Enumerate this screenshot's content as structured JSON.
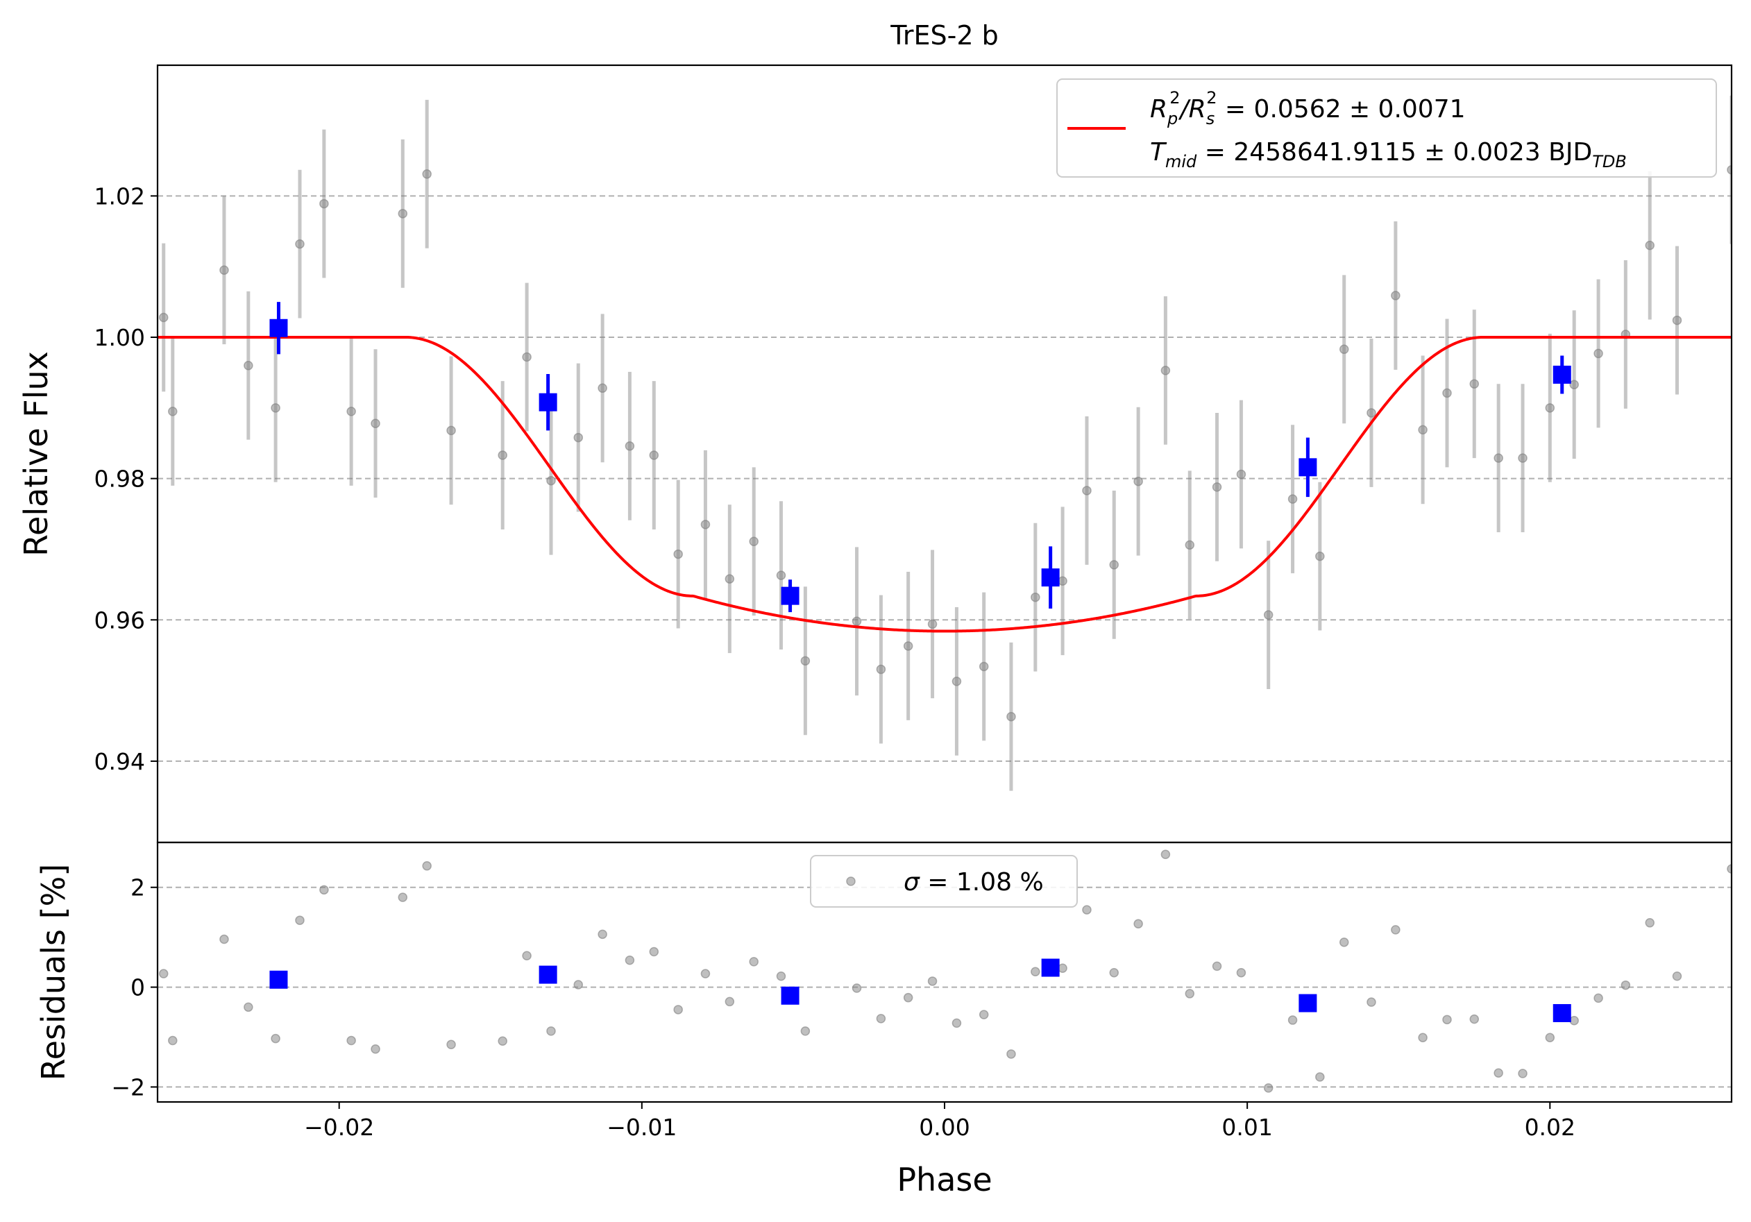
{
  "chart_data": [
    {
      "type": "scatter",
      "title": "TrES-2 b",
      "ylabel": "Relative Flux",
      "xlim": [
        -0.026,
        0.026
      ],
      "ylim": [
        0.9285,
        1.0385
      ],
      "yticks": [
        0.94,
        0.96,
        0.98,
        1.0,
        1.02
      ],
      "ytick_labels": [
        "0.94",
        "0.96",
        "0.98",
        "1.00",
        "1.02"
      ],
      "grid": "horizontal dashed",
      "legend": {
        "position": "top-right",
        "line1": {
          "pre": "R",
          "sub1": "p",
          "sup1": "2",
          "mid": "/R",
          "sub2": "s",
          "sup2": "2",
          "post": " = 0.0562 ± 0.0071"
        },
        "line2": {
          "pre": "T",
          "sub1": "mid",
          "post": " = 2458641.9115 ± 0.0023 BJD",
          "sub2": "TDB"
        }
      },
      "model": {
        "name": "transit model",
        "color": "#ff0000",
        "baseline": 1.0,
        "depth_min": 0.9584,
        "t14": [
          -0.0178,
          0.0178
        ],
        "ingress_end": 0.0083
      },
      "raw_points": {
        "color": "#808080",
        "x": [
          -0.0258,
          -0.0255,
          -0.0238,
          -0.023,
          -0.0221,
          -0.0213,
          -0.0205,
          -0.0196,
          -0.0188,
          -0.0179,
          -0.0171,
          -0.0163,
          -0.0146,
          -0.0138,
          -0.013,
          -0.0121,
          -0.0113,
          -0.0104,
          -0.0096,
          -0.0088,
          -0.0079,
          -0.0071,
          -0.0063,
          -0.0054,
          -0.0046,
          -0.0029,
          -0.0021,
          -0.0012,
          -0.0004,
          0.0004,
          0.0013,
          0.0022,
          0.003,
          0.0039,
          0.0047,
          0.0056,
          0.0064,
          0.0073,
          0.0081,
          0.009,
          0.0098,
          0.0107,
          0.0115,
          0.0124,
          0.0132,
          0.0141,
          0.0149,
          0.0158,
          0.0166,
          0.0175,
          0.0183,
          0.0191,
          0.02,
          0.0208,
          0.0216,
          0.0225,
          0.0233,
          0.0242,
          0.026
        ],
        "y": [
          1.0028,
          0.9895,
          1.0095,
          0.996,
          0.99,
          1.0132,
          1.0189,
          0.9895,
          0.9878,
          1.0175,
          1.0231,
          0.9868,
          0.9833,
          0.9972,
          0.9797,
          0.9858,
          0.9928,
          0.9846,
          0.9833,
          0.9693,
          0.9735,
          0.9658,
          0.9711,
          0.9663,
          0.9542,
          0.9598,
          0.953,
          0.9563,
          0.9594,
          0.9513,
          0.9534,
          0.9463,
          0.9632,
          0.9655,
          0.9783,
          0.9678,
          0.9796,
          0.9953,
          0.9706,
          0.9788,
          0.9806,
          0.9607,
          0.9771,
          0.969,
          0.9983,
          0.9893,
          1.0059,
          0.9869,
          0.9921,
          0.9934,
          0.9829,
          0.9829,
          0.99,
          0.9933,
          0.9977,
          1.0004,
          1.013,
          1.0024,
          1.0237
        ],
        "yerr": [
          0.0105,
          0.0105,
          0.0105,
          0.0105,
          0.0105,
          0.0105,
          0.0105,
          0.0105,
          0.0105,
          0.0105,
          0.0105,
          0.0105,
          0.0105,
          0.0105,
          0.0105,
          0.0105,
          0.0105,
          0.0105,
          0.0105,
          0.0105,
          0.0105,
          0.0105,
          0.0105,
          0.0105,
          0.0105,
          0.0105,
          0.0105,
          0.0105,
          0.0105,
          0.0105,
          0.0105,
          0.0105,
          0.0105,
          0.0105,
          0.0105,
          0.0105,
          0.0105,
          0.0105,
          0.0105,
          0.0105,
          0.0105,
          0.0105,
          0.0105,
          0.0105,
          0.0105,
          0.0105,
          0.0105,
          0.0105,
          0.0105,
          0.0105,
          0.0105,
          0.0105,
          0.0105,
          0.0105,
          0.0105,
          0.0105,
          0.0105,
          0.0105,
          0.0105
        ]
      },
      "binned_points": {
        "color": "#0000ff",
        "x": [
          -0.022,
          -0.0131,
          -0.0051,
          0.0035,
          0.012,
          0.0204
        ],
        "y": [
          1.0013,
          0.9908,
          0.9634,
          0.966,
          0.9816,
          0.9947
        ],
        "yerr": [
          0.0037,
          0.004,
          0.0023,
          0.0044,
          0.0042,
          0.0027
        ]
      }
    },
    {
      "type": "scatter",
      "xlabel": "Phase",
      "ylabel": "Residuals [%]",
      "xlim": [
        -0.026,
        0.026
      ],
      "ylim": [
        -2.3,
        2.9
      ],
      "xticks": [
        -0.02,
        -0.01,
        0.0,
        0.01,
        0.02
      ],
      "xtick_labels": [
        "−0.02",
        "−0.01",
        "0.00",
        "0.01",
        "0.02"
      ],
      "yticks": [
        -2,
        0,
        2
      ],
      "ytick_labels": [
        "−2",
        "0",
        "2"
      ],
      "grid": "horizontal dashed",
      "legend": {
        "position": "top-center",
        "label_sym": "σ",
        "label_rest": " = 1.08 %"
      },
      "raw_points": {
        "color": "#808080",
        "x": [
          -0.0258,
          -0.0255,
          -0.0238,
          -0.023,
          -0.0221,
          -0.0213,
          -0.0205,
          -0.0196,
          -0.0188,
          -0.0179,
          -0.0171,
          -0.0163,
          -0.0146,
          -0.0138,
          -0.013,
          -0.0121,
          -0.0113,
          -0.0104,
          -0.0096,
          -0.0088,
          -0.0079,
          -0.0071,
          -0.0063,
          -0.0054,
          -0.0046,
          -0.0029,
          -0.0021,
          -0.0012,
          -0.0004,
          0.0004,
          0.0013,
          0.0022,
          0.003,
          0.0039,
          0.0047,
          0.0056,
          0.0064,
          0.0073,
          0.0081,
          0.009,
          0.0098,
          0.0107,
          0.0115,
          0.0124,
          0.0132,
          0.0141,
          0.0149,
          0.0158,
          0.0166,
          0.0175,
          0.0183,
          0.0191,
          0.02,
          0.0208,
          0.0216,
          0.0225,
          0.0233,
          0.0242,
          0.026
        ],
        "y": [
          0.27,
          -1.07,
          0.96,
          -0.4,
          -1.03,
          1.34,
          1.95,
          -1.07,
          -1.24,
          1.8,
          2.43,
          -1.15,
          -1.08,
          0.63,
          -0.88,
          0.05,
          1.06,
          0.54,
          0.71,
          -0.45,
          0.27,
          -0.29,
          0.51,
          0.22,
          -0.88,
          -0.02,
          -0.63,
          -0.21,
          0.12,
          -0.72,
          -0.55,
          -1.34,
          0.31,
          0.38,
          1.55,
          0.29,
          1.27,
          2.66,
          -0.13,
          0.42,
          0.29,
          -2.02,
          -0.66,
          -1.8,
          0.9,
          -0.3,
          1.15,
          -1.01,
          -0.65,
          -0.64,
          -1.72,
          -1.73,
          -1.01,
          -0.67,
          -0.22,
          0.04,
          1.29,
          0.22,
          2.37
        ]
      },
      "binned_points": {
        "color": "#0000ff",
        "x": [
          -0.022,
          -0.0131,
          -0.0051,
          0.0035,
          0.012,
          0.0204
        ],
        "y": [
          0.15,
          0.25,
          -0.17,
          0.39,
          -0.32,
          -0.52
        ]
      }
    }
  ]
}
